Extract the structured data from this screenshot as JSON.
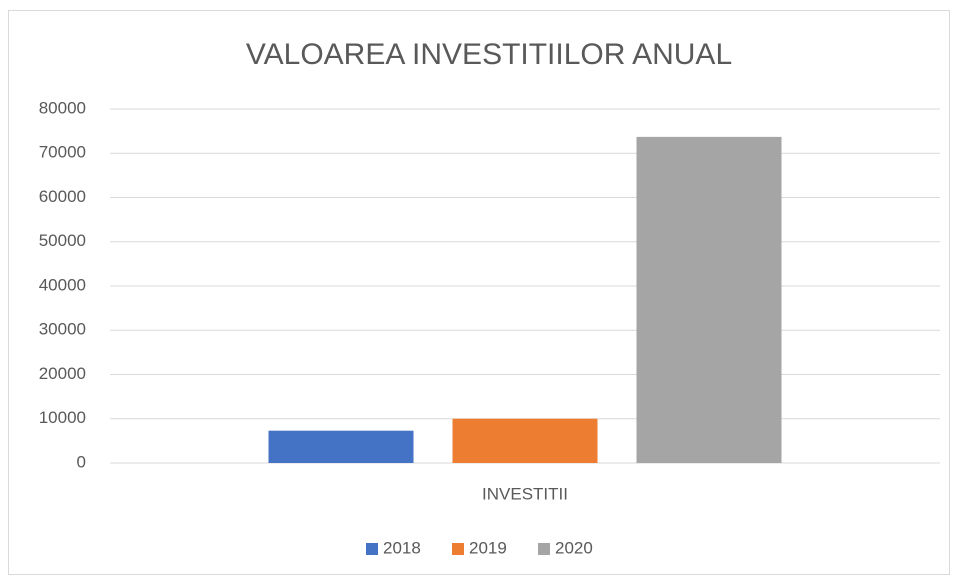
{
  "chart_data": {
    "type": "bar",
    "title": "VALOAREA INVESTITIILOR ANUAL",
    "categories": [
      "INVESTITII"
    ],
    "series": [
      {
        "name": "2018",
        "color": "#4472c4",
        "values": [
          7300
        ]
      },
      {
        "name": "2019",
        "color": "#ed7d31",
        "values": [
          10000
        ]
      },
      {
        "name": "2020",
        "color": "#a5a5a5",
        "values": [
          73700
        ]
      }
    ],
    "ylim": [
      0,
      80000
    ],
    "yticks": [
      0,
      10000,
      20000,
      30000,
      40000,
      50000,
      60000,
      70000,
      80000
    ],
    "grid": true,
    "legend": "bottom"
  }
}
